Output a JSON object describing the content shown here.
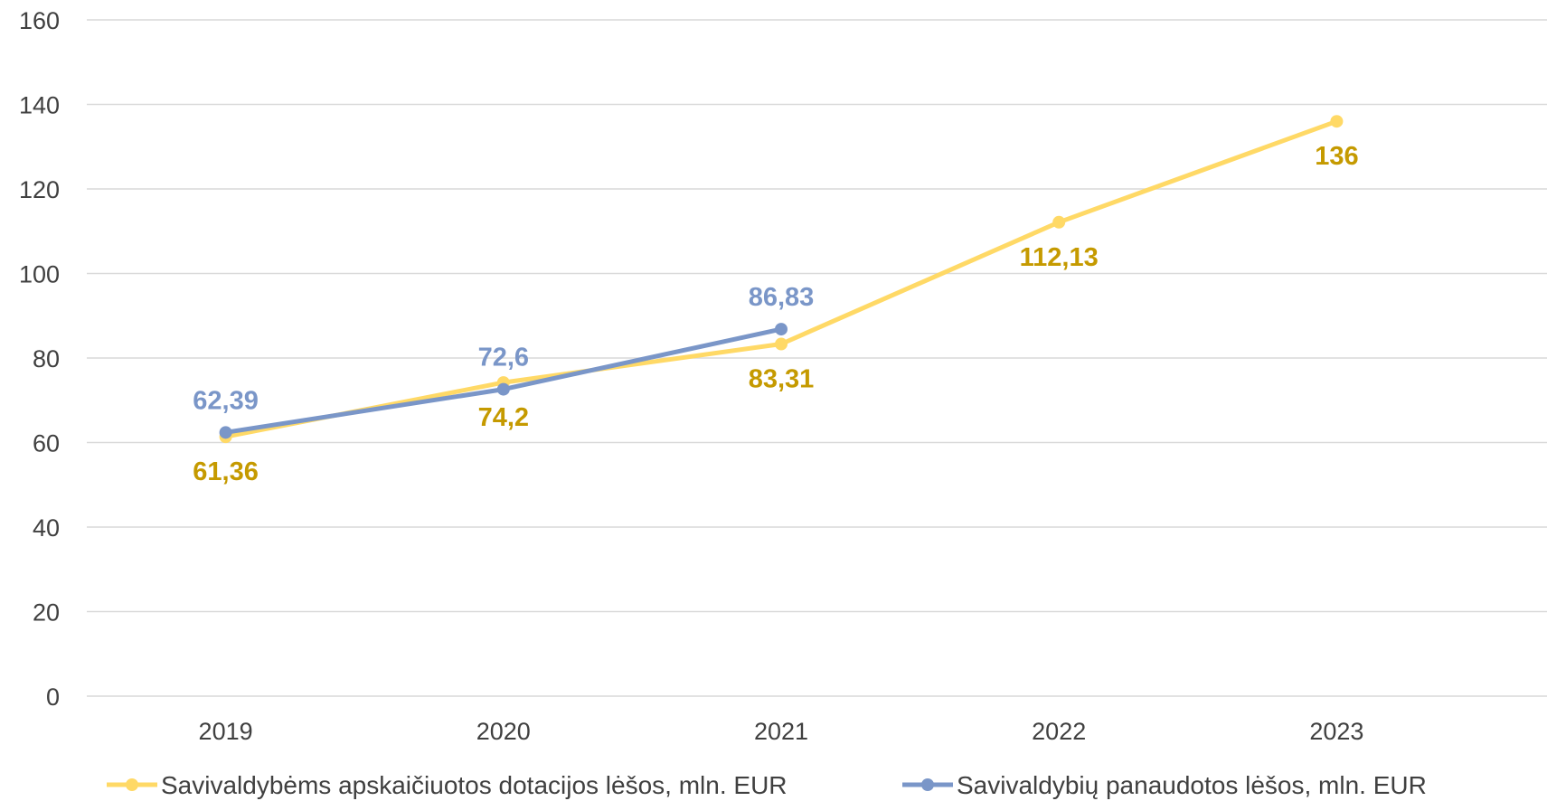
{
  "chart_data": {
    "type": "line",
    "categories": [
      "2019",
      "2020",
      "2021",
      "2022",
      "2023"
    ],
    "ylim": [
      0,
      160
    ],
    "yticks": [
      0,
      20,
      40,
      60,
      80,
      100,
      120,
      140,
      160
    ],
    "ytick_labels": [
      "0",
      "20",
      "40",
      "60",
      "80",
      "100",
      "120",
      "140",
      "160"
    ],
    "grid": true,
    "legend_position": "bottom",
    "series": [
      {
        "name": "Savivaldybėms apskaičiuotos dotacijos lėšos, mln. EUR",
        "color": "#FFD966",
        "label_color": "#C59A00",
        "values": [
          61.36,
          74.2,
          83.31,
          112.13,
          136
        ],
        "labels": [
          "61,36",
          "74,2",
          "83,31",
          "112,13",
          "136"
        ],
        "label_side": "below"
      },
      {
        "name": "Savivaldybių panaudotos lėšos, mln. EUR",
        "color": "#7A96C8",
        "label_color": "#7A96C8",
        "values": [
          62.39,
          72.6,
          86.83,
          null,
          null
        ],
        "labels": [
          "62,39",
          "72,6",
          "86,83",
          null,
          null
        ],
        "label_side": "above"
      }
    ]
  }
}
